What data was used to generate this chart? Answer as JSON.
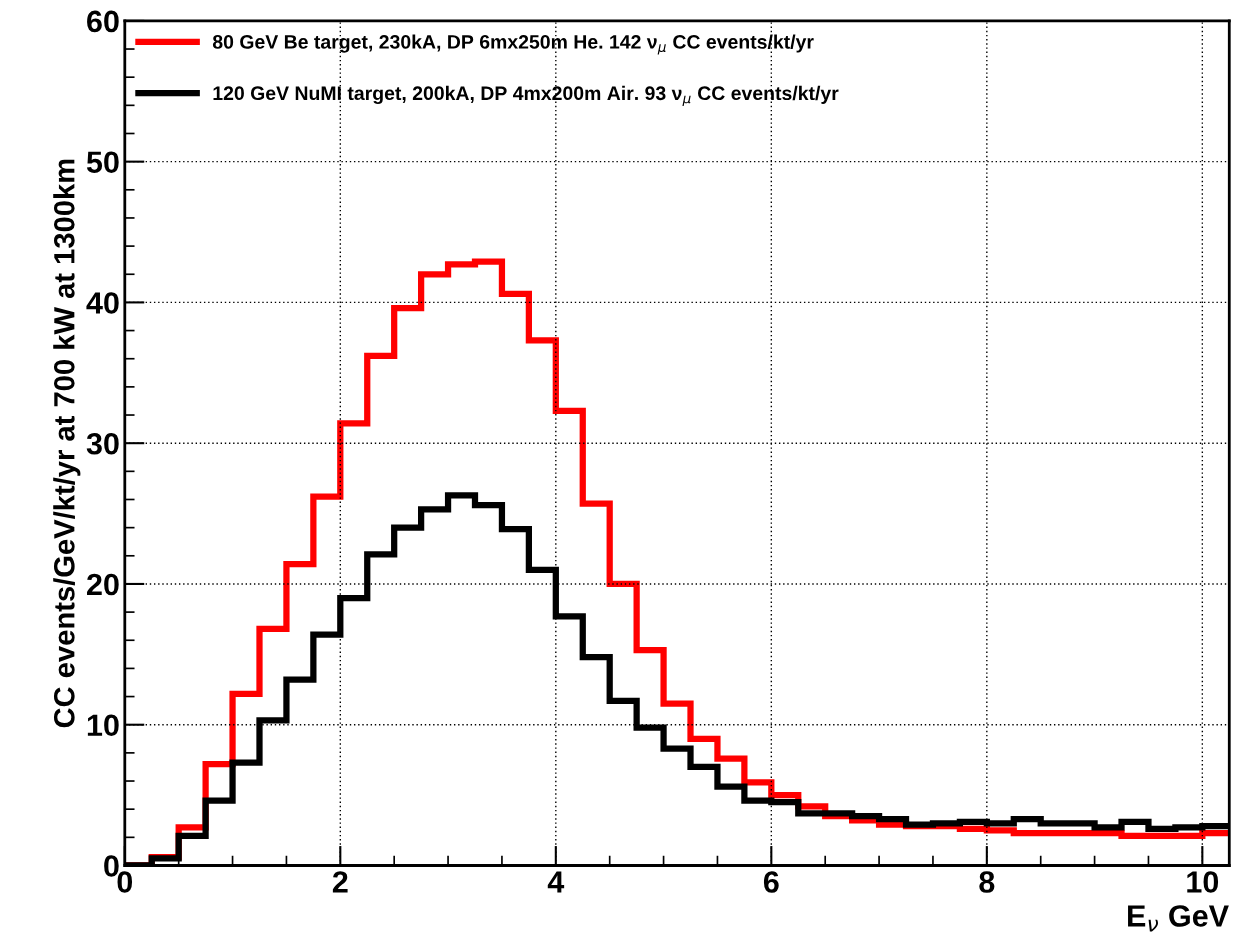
{
  "chart_data": {
    "type": "histogram",
    "xlabel": "E$_{ν}$ GeV",
    "ylabel": "CC events/GeV/kt/yr at 700 kW at 1300km",
    "bins": [
      0,
      0.25,
      0.5,
      0.75,
      1,
      1.25,
      1.5,
      1.75,
      2,
      2.25,
      2.5,
      2.75,
      3,
      3.25,
      3.5,
      3.75,
      4,
      4.25,
      4.5,
      4.75,
      5,
      5.25,
      5.5,
      5.75,
      6,
      6.25,
      6.5,
      6.75,
      7,
      7.25,
      7.5,
      7.75,
      8,
      8.25,
      8.5,
      8.75,
      9,
      9.25,
      9.5,
      9.75,
      10,
      10.25
    ],
    "series": [
      {
        "name": "80 GeV Be target, 230kA, DP 6mx250m He. 142 ν$_{μ}$ CC events/kt/yr",
        "color": "#ff0000",
        "values": [
          0,
          0.6,
          2.7,
          7.2,
          12.2,
          16.8,
          21.4,
          26.2,
          31.4,
          36.2,
          39.6,
          42.0,
          42.7,
          42.9,
          40.6,
          37.3,
          32.3,
          25.7,
          20.0,
          15.3,
          11.5,
          9.0,
          7.6,
          5.9,
          5.0,
          4.2,
          3.5,
          3.2,
          2.9,
          2.8,
          2.8,
          2.6,
          2.5,
          2.3,
          2.3,
          2.3,
          2.3,
          2.1,
          2.1,
          2.1,
          2.3
        ]
      },
      {
        "name": "120 GeV NuMI target, 200kA, DP 4mx200m Air. 93 ν$_{μ}$ CC events/kt/yr",
        "color": "#000000",
        "values": [
          0,
          0.5,
          2.1,
          4.6,
          7.3,
          10.3,
          13.2,
          16.4,
          19.0,
          22.1,
          24.0,
          25.3,
          26.3,
          25.6,
          23.9,
          21.0,
          17.7,
          14.8,
          11.7,
          9.8,
          8.3,
          7.0,
          5.6,
          4.6,
          4.5,
          3.7,
          3.7,
          3.5,
          3.3,
          2.9,
          3.0,
          3.1,
          3.0,
          3.3,
          3.0,
          3.0,
          2.7,
          3.1,
          2.6,
          2.7,
          2.8
        ]
      }
    ],
    "xlim": [
      0,
      10.25
    ],
    "ylim": [
      0,
      60
    ],
    "xticks": [
      0,
      2,
      4,
      6,
      8,
      10
    ],
    "yticks": [
      0,
      10,
      20,
      30,
      40,
      50,
      60
    ],
    "grid": true,
    "legend": "top left"
  }
}
